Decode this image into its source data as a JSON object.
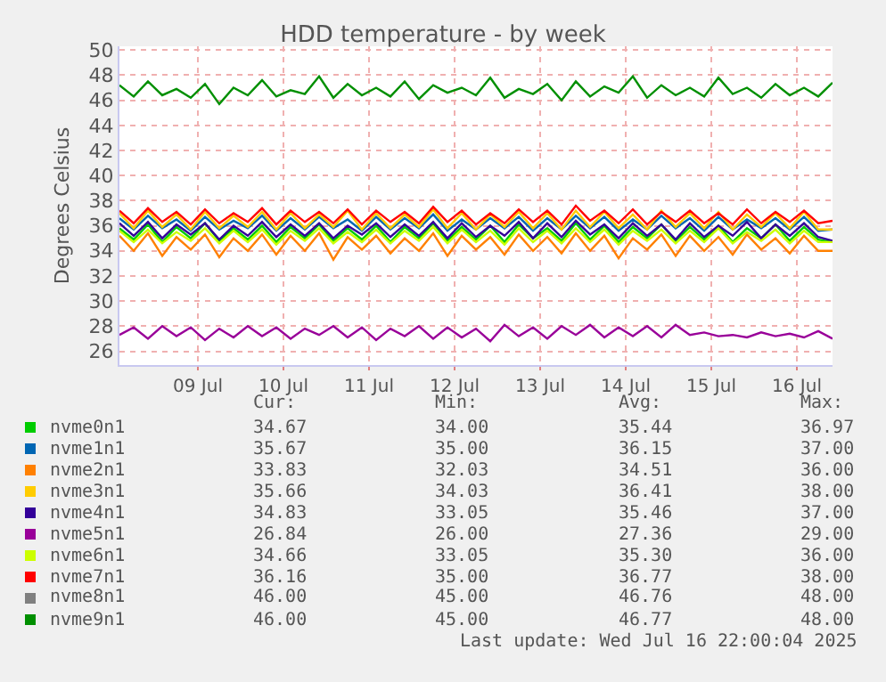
{
  "chart_data": {
    "type": "line",
    "title": "HDD temperature - by week",
    "ylabel": "Degrees Celsius",
    "xlim": [
      "2025-07-08T14:00",
      "2025-07-16T22:00"
    ],
    "xticks": [
      {
        "value": "2025-07-09T12:00",
        "label": "09 Jul"
      },
      {
        "value": "2025-07-10T12:00",
        "label": "10 Jul"
      },
      {
        "value": "2025-07-11T12:00",
        "label": "11 Jul"
      },
      {
        "value": "2025-07-12T12:00",
        "label": "12 Jul"
      },
      {
        "value": "2025-07-13T12:00",
        "label": "13 Jul"
      },
      {
        "value": "2025-07-14T12:00",
        "label": "14 Jul"
      },
      {
        "value": "2025-07-15T12:00",
        "label": "15 Jul"
      },
      {
        "value": "2025-07-16T12:00",
        "label": "16 Jul"
      }
    ],
    "ylim": [
      24.9,
      50.3
    ],
    "yticks": [
      26,
      28,
      30,
      32,
      34,
      36,
      38,
      40,
      42,
      44,
      46,
      48,
      50
    ],
    "grid": true,
    "legend": "bottom",
    "marker": "none",
    "line_style": "solid",
    "x": [
      "2025-07-08T14:00",
      "2025-07-08T18:00",
      "2025-07-08T22:00",
      "2025-07-09T02:00",
      "2025-07-09T06:00",
      "2025-07-09T10:00",
      "2025-07-09T14:00",
      "2025-07-09T18:00",
      "2025-07-09T22:00",
      "2025-07-10T02:00",
      "2025-07-10T06:00",
      "2025-07-10T10:00",
      "2025-07-10T14:00",
      "2025-07-10T18:00",
      "2025-07-10T22:00",
      "2025-07-11T02:00",
      "2025-07-11T06:00",
      "2025-07-11T10:00",
      "2025-07-11T14:00",
      "2025-07-11T18:00",
      "2025-07-11T22:00",
      "2025-07-12T02:00",
      "2025-07-12T06:00",
      "2025-07-12T10:00",
      "2025-07-12T14:00",
      "2025-07-12T18:00",
      "2025-07-12T22:00",
      "2025-07-13T02:00",
      "2025-07-13T06:00",
      "2025-07-13T10:00",
      "2025-07-13T14:00",
      "2025-07-13T18:00",
      "2025-07-13T22:00",
      "2025-07-14T02:00",
      "2025-07-14T06:00",
      "2025-07-14T10:00",
      "2025-07-14T14:00",
      "2025-07-14T18:00",
      "2025-07-14T22:00",
      "2025-07-15T02:00",
      "2025-07-15T06:00",
      "2025-07-15T10:00",
      "2025-07-15T14:00",
      "2025-07-15T18:00",
      "2025-07-15T22:00",
      "2025-07-16T02:00",
      "2025-07-16T06:00",
      "2025-07-16T10:00",
      "2025-07-16T14:00",
      "2025-07-16T18:00",
      "2025-07-16T22:00"
    ],
    "series": [
      {
        "name": "nvme0n1",
        "color": "#00cc00",
        "values": [
          35.8,
          34.9,
          36.1,
          34.7,
          35.9,
          35.0,
          36.2,
          34.8,
          35.8,
          34.9,
          36.0,
          34.7,
          35.9,
          35.0,
          36.1,
          34.8,
          35.8,
          34.9,
          36.0,
          34.7,
          35.9,
          35.0,
          36.2,
          34.8,
          35.9,
          34.9,
          36.0,
          34.7,
          36.1,
          35.0,
          35.8,
          34.8,
          36.2,
          34.9,
          36.0,
          34.7,
          35.9,
          35.0,
          36.1,
          34.8,
          35.9,
          34.9,
          36.0,
          34.7,
          35.8,
          35.0,
          36.1,
          34.8,
          35.9,
          34.9,
          34.7
        ]
      },
      {
        "name": "nvme1n1",
        "color": "#0066b3",
        "values": [
          36.6,
          35.7,
          36.8,
          35.8,
          36.5,
          35.6,
          36.7,
          35.7,
          36.4,
          35.8,
          36.8,
          35.6,
          36.6,
          35.7,
          36.7,
          35.8,
          36.5,
          35.6,
          36.7,
          35.7,
          36.6,
          35.8,
          36.9,
          35.6,
          36.5,
          35.7,
          36.6,
          35.8,
          36.7,
          35.6,
          36.6,
          35.7,
          36.8,
          35.8,
          36.7,
          35.6,
          36.5,
          35.7,
          36.8,
          35.8,
          36.6,
          35.6,
          36.7,
          35.7,
          36.5,
          35.8,
          36.6,
          35.7,
          36.7,
          35.6,
          35.7
        ]
      },
      {
        "name": "nvme2n1",
        "color": "#ff8000",
        "values": [
          35.2,
          34.0,
          35.4,
          33.6,
          35.1,
          34.1,
          35.3,
          33.5,
          35.0,
          34.0,
          35.3,
          33.7,
          35.2,
          34.0,
          35.4,
          33.3,
          35.1,
          34.1,
          35.2,
          33.8,
          35.0,
          34.0,
          35.4,
          33.6,
          35.2,
          34.1,
          35.1,
          33.7,
          35.3,
          34.0,
          35.1,
          33.8,
          35.4,
          34.0,
          35.2,
          33.4,
          35.0,
          34.1,
          35.3,
          33.6,
          35.2,
          34.0,
          35.1,
          33.7,
          35.3,
          34.1,
          35.0,
          33.8,
          35.2,
          34.0,
          34.0
        ]
      },
      {
        "name": "nvme3n1",
        "color": "#ffcc00",
        "values": [
          37.0,
          35.8,
          37.2,
          35.9,
          36.9,
          35.7,
          37.1,
          35.8,
          36.8,
          35.9,
          37.1,
          35.7,
          37.0,
          35.8,
          36.9,
          35.9,
          37.2,
          35.7,
          37.0,
          35.8,
          36.9,
          35.9,
          37.3,
          35.8,
          37.0,
          35.7,
          36.9,
          35.9,
          37.1,
          35.8,
          37.0,
          35.7,
          37.2,
          35.9,
          37.1,
          35.8,
          36.9,
          35.7,
          37.2,
          35.9,
          37.0,
          35.8,
          37.1,
          35.7,
          36.9,
          35.9,
          37.0,
          35.8,
          37.1,
          35.7,
          35.7
        ]
      },
      {
        "name": "nvme4n1",
        "color": "#330099",
        "values": [
          36.2,
          35.2,
          36.3,
          35.0,
          36.1,
          35.3,
          36.2,
          34.9,
          36.0,
          35.2,
          36.3,
          35.1,
          36.1,
          35.2,
          36.2,
          35.0,
          36.0,
          35.3,
          36.2,
          35.1,
          36.1,
          35.2,
          36.3,
          35.0,
          36.2,
          35.1,
          36.0,
          35.2,
          36.3,
          35.0,
          36.2,
          35.1,
          36.4,
          35.3,
          36.1,
          35.0,
          36.2,
          35.2,
          36.1,
          34.9,
          36.2,
          35.1,
          36.0,
          35.2,
          36.3,
          35.0,
          36.1,
          35.2,
          36.2,
          35.1,
          34.8
        ]
      },
      {
        "name": "nvme5n1",
        "color": "#990099",
        "values": [
          27.3,
          27.9,
          27.0,
          28.0,
          27.2,
          27.9,
          26.9,
          27.8,
          27.1,
          28.0,
          27.2,
          27.9,
          27.0,
          27.8,
          27.3,
          28.0,
          27.1,
          27.9,
          26.9,
          27.8,
          27.2,
          28.0,
          27.0,
          27.9,
          27.1,
          27.8,
          26.8,
          28.1,
          27.2,
          27.9,
          27.0,
          28.0,
          27.3,
          28.1,
          27.1,
          27.9,
          27.2,
          28.0,
          27.1,
          28.1,
          27.3,
          27.5,
          27.2,
          27.3,
          27.1,
          27.5,
          27.2,
          27.4,
          27.1,
          27.6,
          27.0
        ]
      },
      {
        "name": "nvme6n1",
        "color": "#ccff00",
        "values": [
          35.6,
          34.7,
          35.7,
          34.6,
          35.5,
          34.8,
          35.8,
          34.6,
          35.6,
          34.7,
          35.7,
          34.5,
          35.6,
          34.8,
          35.8,
          34.6,
          35.5,
          34.7,
          35.7,
          34.6,
          35.6,
          34.8,
          35.9,
          34.6,
          35.7,
          34.7,
          35.6,
          34.5,
          35.8,
          34.7,
          35.6,
          34.6,
          35.8,
          34.7,
          35.7,
          34.5,
          35.6,
          34.8,
          35.7,
          34.6,
          35.6,
          34.7,
          35.8,
          34.6,
          35.5,
          34.8,
          35.7,
          34.6,
          35.6,
          34.7,
          34.7
        ]
      },
      {
        "name": "nvme7n1",
        "color": "#ff0000",
        "values": [
          37.2,
          36.2,
          37.4,
          36.3,
          37.1,
          36.1,
          37.3,
          36.2,
          37.0,
          36.3,
          37.4,
          36.1,
          37.2,
          36.3,
          37.1,
          36.2,
          37.3,
          36.1,
          37.2,
          36.3,
          37.1,
          36.2,
          37.5,
          36.3,
          37.2,
          36.1,
          37.0,
          36.2,
          37.3,
          36.3,
          37.2,
          36.1,
          37.6,
          36.4,
          37.2,
          36.2,
          37.3,
          36.1,
          37.1,
          36.3,
          37.2,
          36.2,
          37.0,
          36.1,
          37.3,
          36.2,
          37.1,
          36.3,
          37.2,
          36.2,
          36.4
        ]
      },
      {
        "name": "nvme8n1",
        "color": "#808080",
        "values": [
          null,
          null,
          null,
          null,
          null,
          null,
          null,
          null,
          null,
          null,
          null,
          null,
          null,
          null,
          null,
          null,
          null,
          null,
          null,
          null,
          null,
          null,
          null,
          null,
          null,
          null,
          null,
          null,
          null,
          null,
          null,
          null,
          null,
          null,
          null,
          null,
          null,
          null,
          null,
          null,
          null,
          null,
          null,
          null,
          null,
          null,
          null,
          null,
          null,
          null,
          null
        ]
      },
      {
        "name": "nvme9n1",
        "color": "#008f00",
        "values": [
          47.2,
          46.3,
          47.5,
          46.4,
          46.9,
          46.2,
          47.3,
          45.7,
          47.0,
          46.4,
          47.6,
          46.3,
          46.8,
          46.5,
          47.9,
          46.2,
          47.3,
          46.4,
          47.0,
          46.3,
          47.5,
          46.1,
          47.2,
          46.6,
          47.0,
          46.4,
          47.8,
          46.2,
          46.9,
          46.5,
          47.3,
          46.0,
          47.5,
          46.3,
          47.1,
          46.6,
          47.9,
          46.2,
          47.2,
          46.4,
          47.0,
          46.3,
          47.8,
          46.5,
          47.0,
          46.2,
          47.3,
          46.4,
          47.0,
          46.3,
          47.4
        ]
      }
    ],
    "annotations": [
      "Cur:",
      "Min:",
      "Avg:",
      "Max:",
      "34.67",
      "34.00",
      "35.44",
      "36.97",
      "35.67",
      "35.00",
      "36.15",
      "37.00",
      "33.83",
      "32.03",
      "34.51",
      "36.00",
      "35.66",
      "34.03",
      "36.41",
      "38.00",
      "34.83",
      "33.05",
      "35.46",
      "37.00",
      "26.84",
      "26.00",
      "27.36",
      "29.00",
      "34.66",
      "33.05",
      "35.30",
      "36.00",
      "36.16",
      "35.00",
      "36.77",
      "38.00",
      "46.00",
      "45.00",
      "46.76",
      "48.00",
      "46.00",
      "45.00",
      "46.77",
      "48.00",
      "Last update: Wed Jul 16 22:00:04 2025"
    ]
  }
}
